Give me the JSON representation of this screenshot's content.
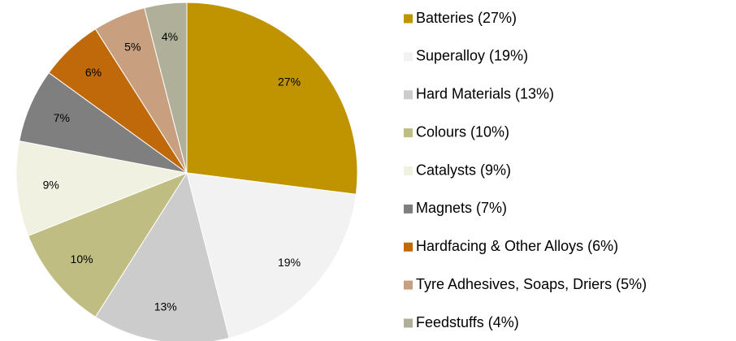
{
  "chart_data": {
    "type": "pie",
    "categories": [
      "Batteries (27%)",
      "Superalloy (19%)",
      "Hard Materials (13%)",
      "Colours (10%)",
      "Catalysts (9%)",
      "Magnets (7%)",
      "Hardfacing & Other Alloys (6%)",
      "Tyre Adhesives, Soaps, Driers (5%)",
      "Feedstuffs (4%)"
    ],
    "values": [
      27,
      19,
      13,
      10,
      9,
      7,
      6,
      5,
      4
    ],
    "value_labels": [
      "27%",
      "19%",
      "13%",
      "10%",
      "9%",
      "7%",
      "6%",
      "5%",
      "4%"
    ],
    "colors": [
      "#c09400",
      "#f2f2f2",
      "#cccccc",
      "#bfbd82",
      "#f1f1e2",
      "#7f7f7f",
      "#c0690b",
      "#c9a07f",
      "#b0b09a"
    ],
    "legend": "right"
  }
}
